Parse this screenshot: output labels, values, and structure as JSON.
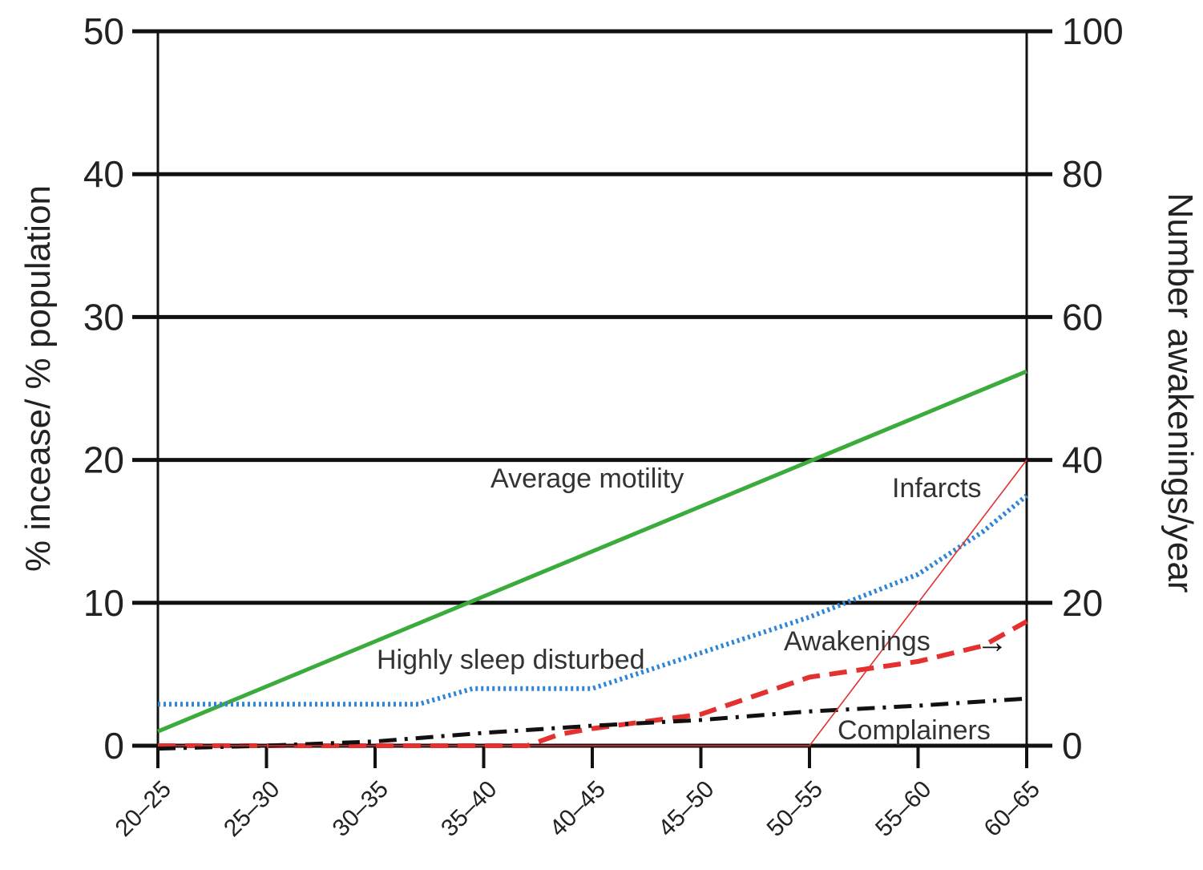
{
  "chart_data": {
    "type": "line",
    "categories": [
      "20–25",
      "25–30",
      "30–35",
      "35–40",
      "40–45",
      "45–50",
      "50–55",
      "55–60",
      "60–65"
    ],
    "ylabel_left": "% incease/  % population",
    "ylabel_right": "Number awakenings/year",
    "ylim_left": [
      0,
      50
    ],
    "ylim_right": [
      0,
      100
    ],
    "yticks_left": [
      "0",
      "10",
      "20",
      "30",
      "40",
      "50"
    ],
    "yticks_right": [
      "0",
      "20",
      "40",
      "60",
      "80",
      "100"
    ],
    "grid": "horizontal",
    "series": [
      {
        "label": "Average motility",
        "axis": "left",
        "color": "#3bab3b",
        "style": "solid",
        "points": [
          [
            0,
            1.0
          ],
          [
            8,
            26.2
          ]
        ]
      },
      {
        "label": "Highly sleep disturbed",
        "axis": "left",
        "color": "#2f86d6",
        "style": "dotted",
        "points": [
          [
            0,
            2.9
          ],
          [
            1,
            2.9
          ],
          [
            2,
            2.9
          ],
          [
            2.4,
            2.9
          ],
          [
            2.9,
            4.0
          ],
          [
            3,
            4.0
          ],
          [
            4,
            4.0
          ],
          [
            5,
            6.5
          ],
          [
            6,
            9.0
          ],
          [
            7,
            12.0
          ],
          [
            7.6,
            15.0
          ],
          [
            8,
            17.5
          ]
        ]
      },
      {
        "label": "Awakenings",
        "axis": "left",
        "color": "#e53030",
        "style": "dashed",
        "points": [
          [
            0,
            0
          ],
          [
            1,
            0
          ],
          [
            2,
            0
          ],
          [
            3,
            0
          ],
          [
            3.4,
            0
          ],
          [
            3.7,
            0.8
          ],
          [
            4,
            1.2
          ],
          [
            5,
            2.2
          ],
          [
            6,
            4.8
          ],
          [
            7,
            5.9
          ],
          [
            7.6,
            7.0
          ],
          [
            8,
            8.7
          ]
        ]
      },
      {
        "label": "Complainers",
        "axis": "left",
        "color": "#111111",
        "style": "dashdot",
        "points": [
          [
            0,
            -0.2
          ],
          [
            1,
            0
          ],
          [
            2,
            0.3
          ],
          [
            3,
            0.9
          ],
          [
            4,
            1.4
          ],
          [
            5,
            1.8
          ],
          [
            6,
            2.4
          ],
          [
            7,
            2.8
          ],
          [
            8,
            3.3
          ]
        ]
      },
      {
        "label": "Infarcts",
        "axis": "left",
        "color": "#e53030",
        "style": "thin",
        "points": [
          [
            0,
            0
          ],
          [
            6,
            0
          ],
          [
            8,
            20
          ]
        ]
      }
    ],
    "annotations": {
      "average_motility": "Average motility",
      "infarcts": "Infarcts",
      "highly_sleep_disturbed": "Highly sleep disturbed",
      "awakenings": "Awakenings",
      "complainers": "Complainers",
      "awakenings_arrow": "→"
    }
  }
}
